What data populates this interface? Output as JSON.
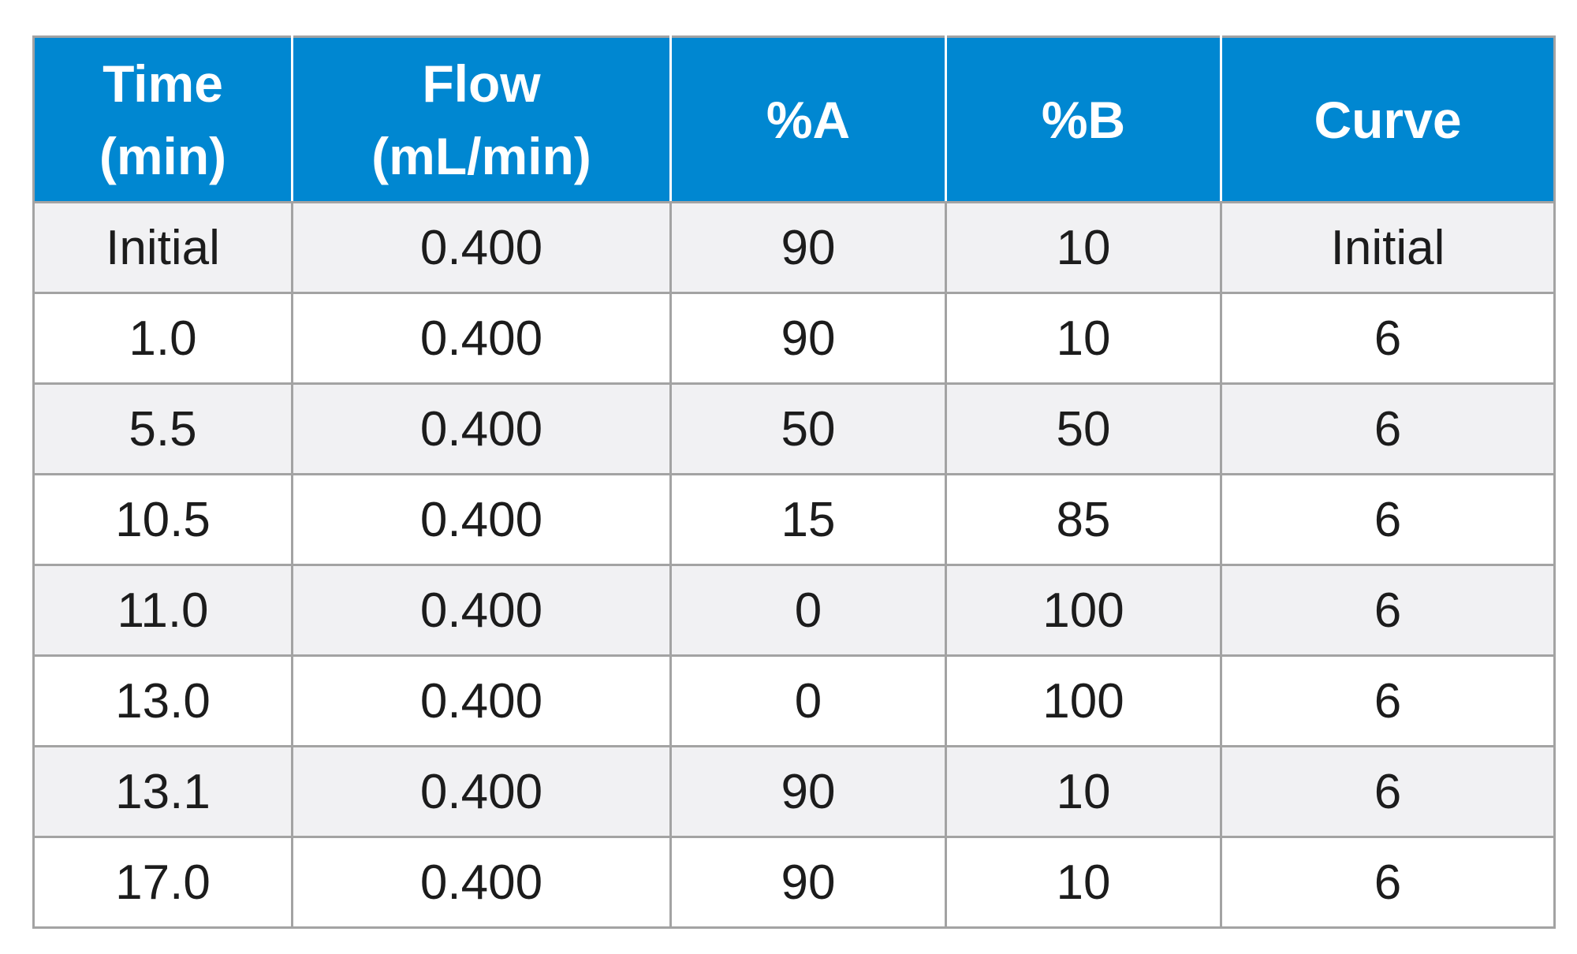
{
  "table": {
    "headers": [
      {
        "lines": [
          "Time",
          "(min)"
        ]
      },
      {
        "lines": [
          "Flow",
          "(mL/min)"
        ]
      },
      {
        "lines": [
          "%A"
        ]
      },
      {
        "lines": [
          "%B"
        ]
      },
      {
        "lines": [
          "Curve"
        ]
      }
    ],
    "rows": [
      [
        "Initial",
        "0.400",
        "90",
        "10",
        "Initial"
      ],
      [
        "1.0",
        "0.400",
        "90",
        "10",
        "6"
      ],
      [
        "5.5",
        "0.400",
        "50",
        "50",
        "6"
      ],
      [
        "10.5",
        "0.400",
        "15",
        "85",
        "6"
      ],
      [
        "11.0",
        "0.400",
        "0",
        "100",
        "6"
      ],
      [
        "13.0",
        "0.400",
        "0",
        "100",
        "6"
      ],
      [
        "13.1",
        "0.400",
        "90",
        "10",
        "6"
      ],
      [
        "17.0",
        "0.400",
        "90",
        "10",
        "6"
      ]
    ]
  },
  "colors": {
    "header_background": "#0087d1",
    "header_text": "#ffffff",
    "row_alt_background": "#f1f1f3",
    "row_background": "#ffffff",
    "grid_line": "#a3a3a3",
    "cell_text": "#1c1c1c"
  }
}
